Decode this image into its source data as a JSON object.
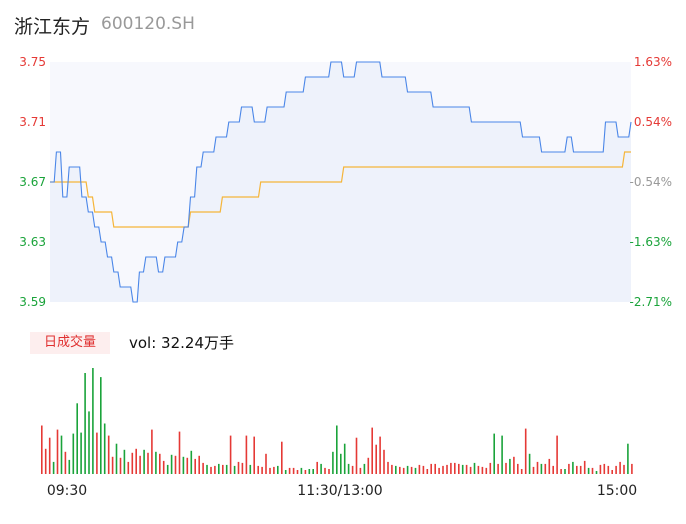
{
  "header": {
    "name": "浙江东方",
    "code": "600120.SH"
  },
  "colors": {
    "up": "#e53935",
    "down": "#1aa33a",
    "price_line": "#4a86e8",
    "avg_line": "#f5b53a",
    "neutral": "#999999"
  },
  "volume_badge": "日成交量",
  "volume_text": "vol: 32.24万手",
  "chart_data": [
    {
      "type": "line",
      "title": "",
      "x_ticks": [
        "09:30",
        "11:30/13:00",
        "15:00"
      ],
      "y_ticks": [
        "3.75",
        "3.71",
        "3.67",
        "3.63",
        "3.59"
      ],
      "y_right_ticks": [
        "1.63%",
        "0.54%",
        "-0.54%",
        "-1.63%",
        "-2.71%"
      ],
      "ylim": [
        3.59,
        3.75
      ],
      "pre_close": 3.69,
      "series": [
        {
          "key": "price",
          "values": [
            3.67,
            3.69,
            3.66,
            3.68,
            3.68,
            3.66,
            3.65,
            3.64,
            3.63,
            3.62,
            3.61,
            3.6,
            3.6,
            3.59,
            3.61,
            3.62,
            3.62,
            3.61,
            3.62,
            3.62,
            3.63,
            3.64,
            3.66,
            3.68,
            3.69,
            3.69,
            3.7,
            3.7,
            3.71,
            3.71,
            3.72,
            3.72,
            3.71,
            3.71,
            3.72,
            3.72,
            3.72,
            3.73,
            3.73,
            3.73,
            3.74,
            3.74,
            3.74,
            3.74,
            3.75,
            3.75,
            3.74,
            3.74,
            3.75,
            3.75,
            3.75,
            3.75,
            3.74,
            3.74,
            3.74,
            3.74,
            3.73,
            3.73,
            3.73,
            3.73,
            3.72,
            3.72,
            3.72,
            3.72,
            3.72,
            3.72,
            3.71,
            3.71,
            3.71,
            3.71,
            3.71,
            3.71,
            3.71,
            3.71,
            3.7,
            3.7,
            3.7,
            3.69,
            3.69,
            3.69,
            3.69,
            3.7,
            3.69,
            3.69,
            3.69,
            3.69,
            3.69,
            3.71,
            3.71,
            3.7,
            3.7,
            3.71
          ]
        },
        {
          "key": "average",
          "values": [
            3.67,
            3.67,
            3.67,
            3.67,
            3.67,
            3.67,
            3.66,
            3.65,
            3.65,
            3.65,
            3.64,
            3.64,
            3.64,
            3.64,
            3.64,
            3.64,
            3.64,
            3.64,
            3.64,
            3.64,
            3.64,
            3.64,
            3.65,
            3.65,
            3.65,
            3.65,
            3.65,
            3.66,
            3.66,
            3.66,
            3.66,
            3.66,
            3.66,
            3.67,
            3.67,
            3.67,
            3.67,
            3.67,
            3.67,
            3.67,
            3.67,
            3.67,
            3.67,
            3.67,
            3.67,
            3.67,
            3.68,
            3.68,
            3.68,
            3.68,
            3.68,
            3.68,
            3.68,
            3.68,
            3.68,
            3.68,
            3.68,
            3.68,
            3.68,
            3.68,
            3.68,
            3.68,
            3.68,
            3.68,
            3.68,
            3.68,
            3.68,
            3.68,
            3.68,
            3.68,
            3.68,
            3.68,
            3.68,
            3.68,
            3.68,
            3.68,
            3.68,
            3.68,
            3.68,
            3.68,
            3.68,
            3.68,
            3.68,
            3.68,
            3.68,
            3.68,
            3.68,
            3.68,
            3.68,
            3.68,
            3.69,
            3.69
          ]
        }
      ]
    },
    {
      "type": "bar",
      "title": "",
      "x_ticks": [
        "09:30",
        "11:30/13:00",
        "15:00"
      ],
      "values": [
        48,
        25,
        36,
        12,
        44,
        38,
        22,
        14,
        40,
        70,
        41,
        100,
        62,
        105,
        41,
        96,
        50,
        38,
        17,
        30,
        16,
        24,
        12,
        21,
        25,
        18,
        24,
        21,
        44,
        22,
        20,
        13,
        9,
        19,
        18,
        42,
        17,
        16,
        23,
        15,
        18,
        11,
        9,
        7,
        8,
        10,
        9,
        9,
        38,
        8,
        12,
        11,
        38,
        9,
        37,
        8,
        7,
        20,
        6,
        7,
        8,
        32,
        4,
        6,
        6,
        4,
        6,
        4,
        5,
        5,
        12,
        10,
        6,
        5,
        22,
        48,
        20,
        30,
        10,
        8,
        36,
        6,
        10,
        16,
        46,
        29,
        37,
        24,
        12,
        9,
        8,
        7,
        6,
        8,
        7,
        6,
        9,
        8,
        5,
        10,
        10,
        6,
        8,
        9,
        11,
        11,
        10,
        9,
        9,
        7,
        11,
        8,
        7,
        6,
        11,
        40,
        10,
        38,
        11,
        15,
        17,
        10,
        5,
        45,
        20,
        7,
        12,
        10,
        10,
        15,
        8,
        38,
        5,
        5,
        10,
        12,
        8,
        8,
        13,
        6,
        6,
        3,
        9,
        10,
        8,
        4,
        8,
        12,
        9,
        30,
        10
      ],
      "dirs": [
        1,
        1,
        1,
        -1,
        1,
        -1,
        1,
        -1,
        -1,
        -1,
        -1,
        -1,
        -1,
        -1,
        1,
        -1,
        -1,
        1,
        1,
        -1,
        1,
        -1,
        1,
        1,
        1,
        1,
        -1,
        1,
        1,
        -1,
        1,
        1,
        -1,
        -1,
        1,
        1,
        -1,
        1,
        -1,
        1,
        1,
        1,
        -1,
        1,
        1,
        -1,
        1,
        -1,
        1,
        -1,
        1,
        1,
        1,
        -1,
        1,
        1,
        1,
        1,
        1,
        1,
        -1,
        1,
        -1,
        1,
        1,
        1,
        -1,
        1,
        -1,
        -1,
        1,
        -1,
        1,
        1,
        -1,
        -1,
        -1,
        -1,
        -1,
        1,
        1,
        1,
        -1,
        1,
        1,
        1,
        1,
        1,
        1,
        1,
        -1,
        1,
        1,
        -1,
        1,
        -1,
        1,
        1,
        1,
        1,
        1,
        1,
        1,
        1,
        1,
        1,
        1,
        -1,
        1,
        1,
        -1,
        1,
        1,
        1,
        1,
        -1,
        1,
        -1,
        1,
        -1,
        1,
        1,
        1,
        1,
        -1,
        1,
        1,
        -1,
        1,
        1,
        1,
        1,
        1,
        -1,
        1,
        -1,
        1,
        1,
        1,
        -1,
        1,
        -1,
        1,
        1,
        1,
        1,
        1,
        1,
        1,
        -1,
        1,
        1,
        1
      ]
    }
  ]
}
